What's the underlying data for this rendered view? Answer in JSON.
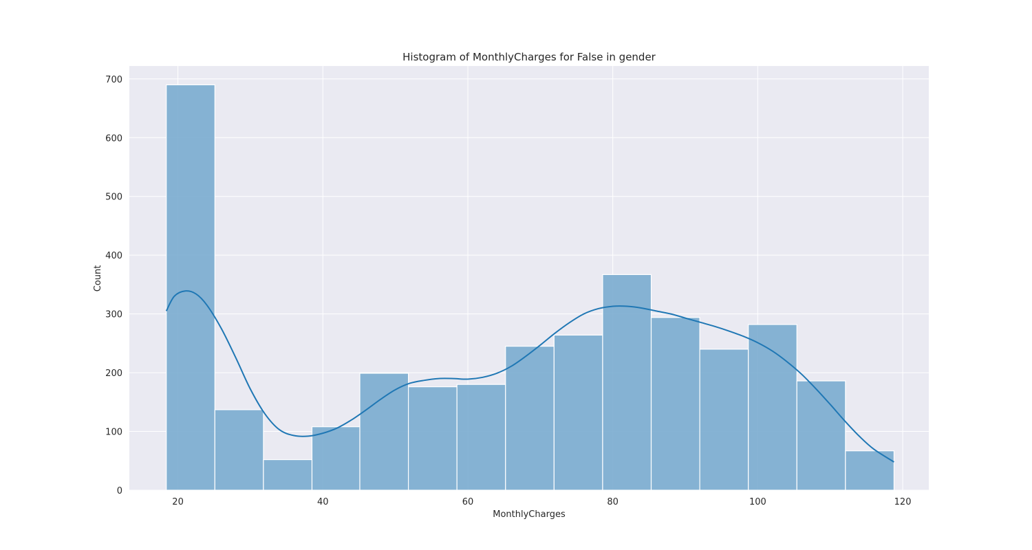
{
  "chart_data": {
    "type": "histogram",
    "title": "Histogram of MonthlyCharges for False in gender",
    "xlabel": "MonthlyCharges",
    "ylabel": "Count",
    "xlim": [
      13.3,
      123.6
    ],
    "ylim": [
      0,
      722
    ],
    "x_ticks": [
      20,
      40,
      60,
      80,
      100,
      120
    ],
    "y_ticks": [
      0,
      100,
      200,
      300,
      400,
      500,
      600,
      700
    ],
    "grid": true,
    "bin_edges": [
      18.4,
      25.1,
      31.8,
      38.5,
      45.1,
      51.8,
      58.5,
      65.2,
      71.9,
      78.6,
      85.3,
      92.0,
      98.7,
      105.4,
      112.1,
      118.8
    ],
    "counts": [
      690,
      137,
      52,
      108,
      199,
      176,
      180,
      245,
      264,
      367,
      294,
      240,
      282,
      186,
      67
    ],
    "kde": {
      "x": [
        18.4,
        19.5,
        21.0,
        22.5,
        24.0,
        26.0,
        28.0,
        30.0,
        32.0,
        34.0,
        36.0,
        38.0,
        40.0,
        42.0,
        44.0,
        46.0,
        48.0,
        50.0,
        52.0,
        54.0,
        56.0,
        58.0,
        60.0,
        62.0,
        64.0,
        66.0,
        68.0,
        70.0,
        72.0,
        74.0,
        76.0,
        78.0,
        80.0,
        82.0,
        84.0,
        86.0,
        88.0,
        90.0,
        92.0,
        94.0,
        96.0,
        98.0,
        100.0,
        102.0,
        104.0,
        106.0,
        108.0,
        110.0,
        112.0,
        114.0,
        116.0,
        118.8
      ],
      "y": [
        305,
        330,
        339,
        334,
        315,
        275,
        225,
        172,
        130,
        103,
        93,
        92,
        97,
        106,
        120,
        137,
        155,
        171,
        182,
        187,
        190,
        190,
        189,
        192,
        199,
        211,
        228,
        247,
        267,
        285,
        300,
        309,
        313,
        313,
        310,
        305,
        300,
        293,
        286,
        279,
        271,
        262,
        251,
        237,
        219,
        198,
        173,
        146,
        118,
        92,
        70,
        48
      ]
    },
    "colors": {
      "bar": "#7aaccf",
      "line": "#1f77b4",
      "plot_background": "#eaeaf2",
      "grid": "#ffffff"
    }
  }
}
